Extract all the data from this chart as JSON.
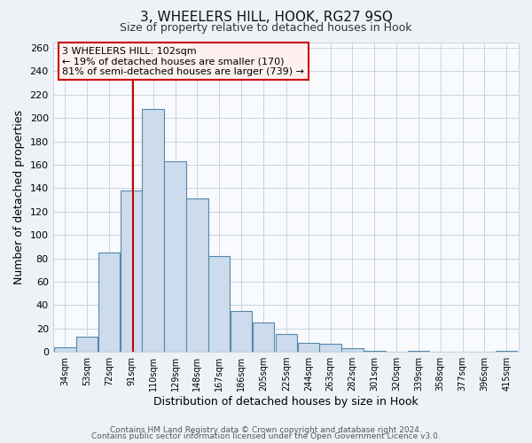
{
  "title": "3, WHEELERS HILL, HOOK, RG27 9SQ",
  "subtitle": "Size of property relative to detached houses in Hook",
  "xlabel": "Distribution of detached houses by size in Hook",
  "ylabel": "Number of detached properties",
  "bar_values": [
    4,
    13,
    85,
    138,
    208,
    163,
    131,
    82,
    35,
    25,
    15,
    8,
    7,
    3,
    1,
    0,
    1,
    0,
    0,
    0,
    1
  ],
  "bin_labels": [
    "34sqm",
    "53sqm",
    "72sqm",
    "91sqm",
    "110sqm",
    "129sqm",
    "148sqm",
    "167sqm",
    "186sqm",
    "205sqm",
    "225sqm",
    "244sqm",
    "263sqm",
    "282sqm",
    "301sqm",
    "320sqm",
    "339sqm",
    "358sqm",
    "377sqm",
    "396sqm",
    "415sqm"
  ],
  "bar_color": "#ccdcec",
  "bar_edge_color": "#5588aa",
  "vline_x": 102,
  "bin_edges": [
    34,
    53,
    72,
    91,
    110,
    129,
    148,
    167,
    186,
    205,
    225,
    244,
    263,
    282,
    301,
    320,
    339,
    358,
    377,
    396,
    415
  ],
  "annotation_line1": "3 WHEELERS HILL: 102sqm",
  "annotation_line2": "← 19% of detached houses are smaller (170)",
  "annotation_line3": "81% of semi-detached houses are larger (739) →",
  "annotation_box_facecolor": "#fff0f0",
  "annotation_box_edgecolor": "#cc0000",
  "ylim": [
    0,
    265
  ],
  "yticks": [
    0,
    20,
    40,
    60,
    80,
    100,
    120,
    140,
    160,
    180,
    200,
    220,
    240,
    260
  ],
  "footer1": "Contains HM Land Registry data © Crown copyright and database right 2024.",
  "footer2": "Contains public sector information licensed under the Open Government Licence v3.0.",
  "bg_color": "#eef2f7",
  "plot_bg_color": "#f8fafd",
  "grid_color": "#c8d4e0"
}
